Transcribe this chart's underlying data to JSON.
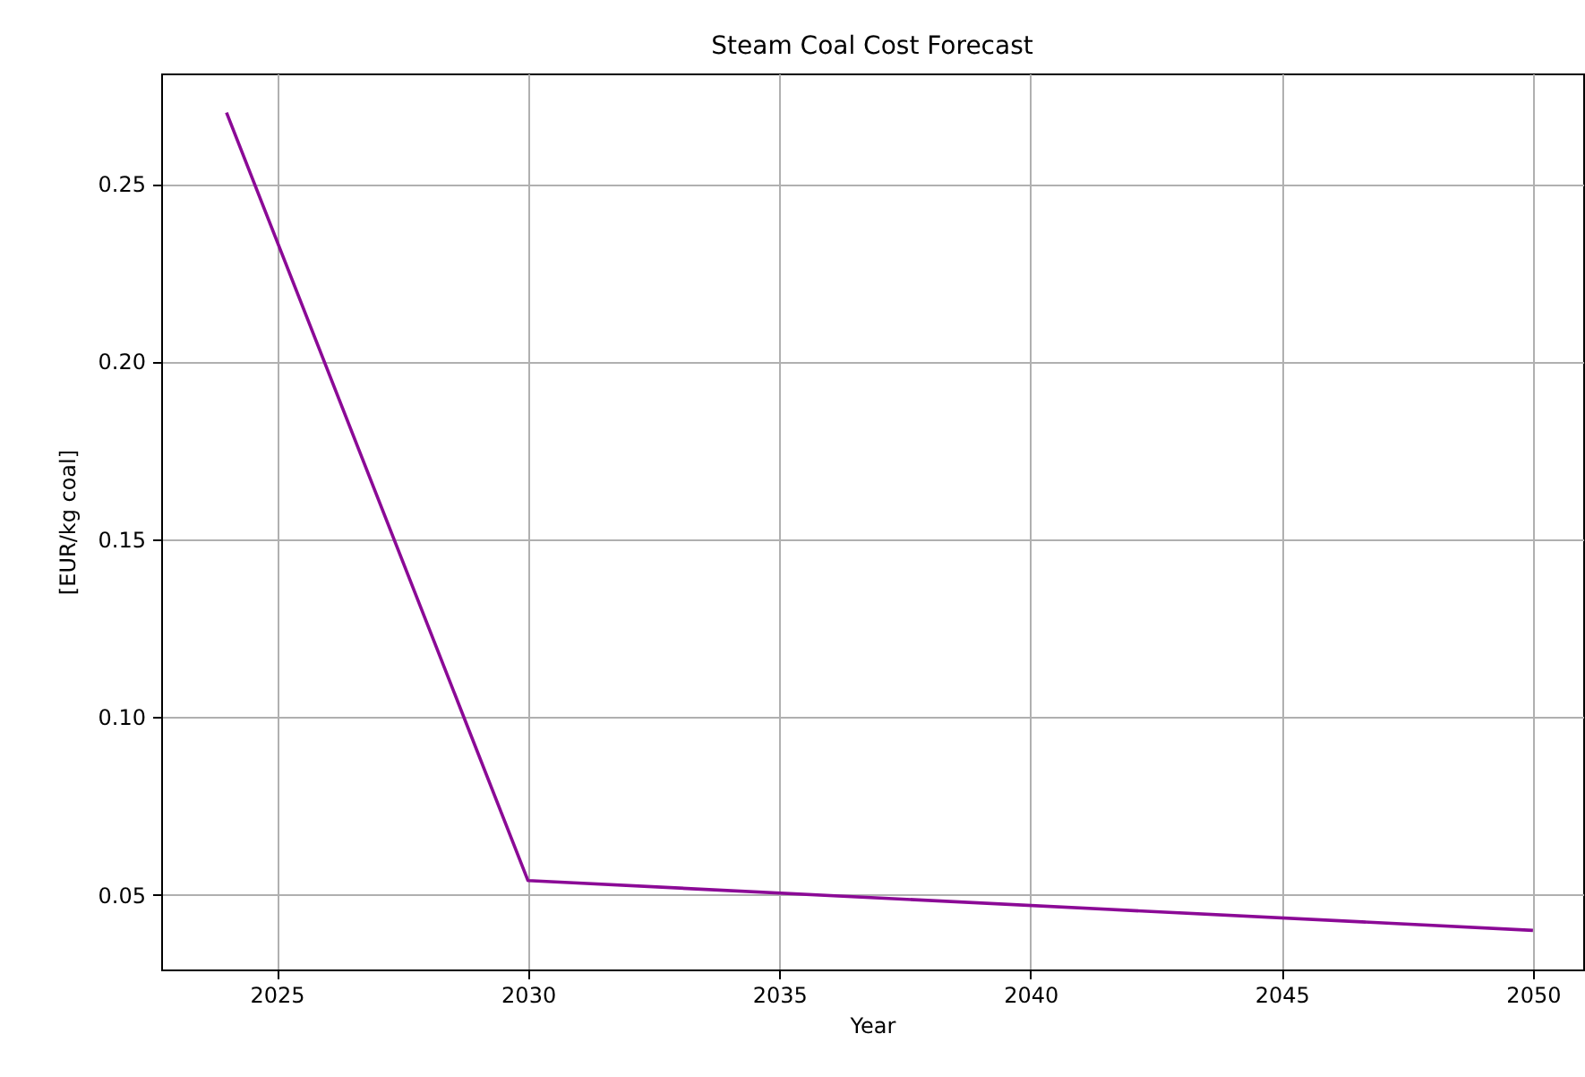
{
  "chart_data": {
    "type": "line",
    "title": "Steam Coal Cost Forecast",
    "xlabel": "Year",
    "ylabel": "[EUR/kg coal]",
    "x": [
      2024,
      2030,
      2050
    ],
    "series": [
      {
        "color": "#8b0a96",
        "values": [
          0.27,
          0.054,
          0.04
        ]
      }
    ],
    "xlim": [
      2022.7,
      2051
    ],
    "xticks": [
      2025,
      2030,
      2035,
      2040,
      2045,
      2050
    ],
    "ylim": [
      0.029,
      0.281
    ],
    "yticks": [
      0.05,
      {
        "value": 0.1,
        "label": "0.10"
      },
      0.15,
      {
        "value": 0.2,
        "label": "0.20"
      },
      0.25
    ],
    "grid": true
  }
}
